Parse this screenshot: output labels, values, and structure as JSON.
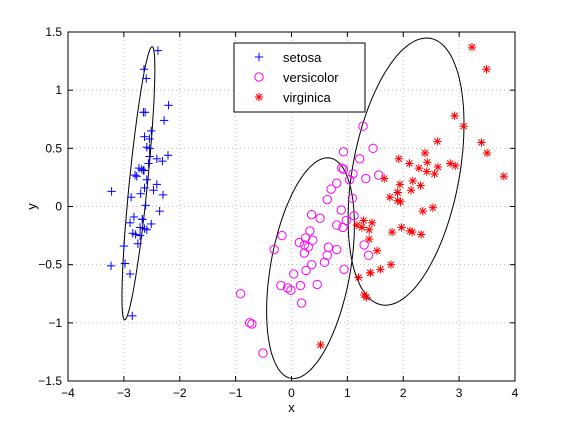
{
  "chart_data": {
    "type": "scatter",
    "xlabel": "x",
    "ylabel": "y",
    "xlim": [
      -4,
      4
    ],
    "ylim": [
      -1.5,
      1.5
    ],
    "xticks": [
      -4,
      -3,
      -2,
      -1,
      0,
      1,
      2,
      3,
      4
    ],
    "yticks": [
      -1.5,
      -1,
      -0.5,
      0,
      0.5,
      1,
      1.5
    ],
    "xtick_labels": [
      "−4",
      "−3",
      "−2",
      "−1",
      "0",
      "1",
      "2",
      "3",
      "4"
    ],
    "ytick_labels": [
      "−1.5",
      "−1",
      "−0.5",
      "0",
      "0.5",
      "1",
      "1.5"
    ],
    "grid": "dotted",
    "legend_position": "top-center",
    "series": [
      {
        "name": "setosa",
        "marker": "plus",
        "color": "#0000ff",
        "points": [
          [
            -2.68,
            0.32
          ],
          [
            -2.71,
            -0.18
          ],
          [
            -2.89,
            -0.14
          ],
          [
            -2.75,
            -0.32
          ],
          [
            -2.73,
            0.33
          ],
          [
            -2.28,
            0.74
          ],
          [
            -2.82,
            -0.09
          ],
          [
            -2.63,
            0.16
          ],
          [
            -2.89,
            -0.58
          ],
          [
            -2.67,
            -0.11
          ],
          [
            -2.51,
            0.65
          ],
          [
            -2.61,
            0.01
          ],
          [
            -2.79,
            -0.24
          ],
          [
            -3.23,
            -0.51
          ],
          [
            -2.64,
            1.18
          ],
          [
            -2.39,
            1.34
          ],
          [
            -2.62,
            0.81
          ],
          [
            -2.65,
            0.31
          ],
          [
            -2.2,
            0.87
          ],
          [
            -2.59,
            0.51
          ],
          [
            -2.31,
            0.39
          ],
          [
            -2.54,
            0.43
          ],
          [
            -3.22,
            0.13
          ],
          [
            -2.3,
            0.1
          ],
          [
            -2.36,
            -0.04
          ],
          [
            -2.51,
            -0.15
          ],
          [
            -2.47,
            0.14
          ],
          [
            -2.56,
            0.37
          ],
          [
            -2.64,
            0.31
          ],
          [
            -2.63,
            -0.19
          ],
          [
            -2.59,
            -0.2
          ],
          [
            -2.41,
            0.41
          ],
          [
            -2.65,
            0.81
          ],
          [
            -2.6,
            1.1
          ],
          [
            -2.67,
            -0.11
          ],
          [
            -2.87,
            0.08
          ],
          [
            -2.63,
            0.6
          ],
          [
            -2.8,
            0.27
          ],
          [
            -2.98,
            -0.49
          ],
          [
            -2.59,
            0.23
          ],
          [
            -2.77,
            0.26
          ],
          [
            -2.85,
            -0.94
          ],
          [
            -3.0,
            -0.34
          ],
          [
            -2.41,
            0.19
          ],
          [
            -2.21,
            0.44
          ],
          [
            -2.71,
            -0.25
          ],
          [
            -2.54,
            0.5
          ],
          [
            -2.84,
            -0.23
          ],
          [
            -2.54,
            0.58
          ],
          [
            -2.7,
            0.11
          ]
        ]
      },
      {
        "name": "versicolor",
        "marker": "circle",
        "color": "#ff00ff",
        "points": [
          [
            1.28,
            0.69
          ],
          [
            0.93,
            0.32
          ],
          [
            1.46,
            0.5
          ],
          [
            0.18,
            -0.83
          ],
          [
            1.09,
            0.07
          ],
          [
            0.64,
            -0.42
          ],
          [
            1.1,
            0.28
          ],
          [
            -0.75,
            -1.0
          ],
          [
            1.04,
            0.23
          ],
          [
            -0.01,
            -0.72
          ],
          [
            -0.51,
            -1.26
          ],
          [
            0.51,
            -0.1
          ],
          [
            0.26,
            -0.55
          ],
          [
            0.98,
            -0.12
          ],
          [
            -0.17,
            -0.25
          ],
          [
            0.93,
            0.47
          ],
          [
            0.66,
            -0.35
          ],
          [
            0.23,
            -0.33
          ],
          [
            0.94,
            -0.54
          ],
          [
            0.04,
            -0.58
          ],
          [
            1.12,
            -0.08
          ],
          [
            0.36,
            -0.07
          ],
          [
            1.3,
            -0.33
          ],
          [
            0.92,
            -0.18
          ],
          [
            0.71,
            0.15
          ],
          [
            0.9,
            0.33
          ],
          [
            1.33,
            0.24
          ],
          [
            1.56,
            0.27
          ],
          [
            0.81,
            -0.16
          ],
          [
            -0.31,
            -0.37
          ],
          [
            -0.07,
            -0.7
          ],
          [
            -0.19,
            -0.68
          ],
          [
            0.14,
            -0.31
          ],
          [
            1.38,
            -0.42
          ],
          [
            0.59,
            -0.48
          ],
          [
            0.81,
            0.2
          ],
          [
            1.22,
            0.41
          ],
          [
            0.81,
            -0.37
          ],
          [
            0.25,
            -0.27
          ],
          [
            0.16,
            -0.68
          ],
          [
            0.46,
            -0.67
          ],
          [
            0.89,
            -0.03
          ],
          [
            0.23,
            -0.4
          ],
          [
            -0.71,
            -1.01
          ],
          [
            0.36,
            -0.5
          ],
          [
            0.33,
            -0.21
          ],
          [
            0.38,
            -0.29
          ],
          [
            0.64,
            0.06
          ],
          [
            -0.91,
            -0.75
          ],
          [
            0.3,
            -0.35
          ]
        ]
      },
      {
        "name": "virginica",
        "marker": "asterisk",
        "color": "#ff0000",
        "points": [
          [
            2.53,
            -0.01
          ],
          [
            1.41,
            -0.57
          ],
          [
            2.62,
            0.34
          ],
          [
            1.97,
            -0.18
          ],
          [
            2.35,
            -0.04
          ],
          [
            3.4,
            0.55
          ],
          [
            0.52,
            -1.19
          ],
          [
            2.93,
            0.35
          ],
          [
            2.32,
            -0.24
          ],
          [
            2.92,
            0.78
          ],
          [
            1.66,
            0.24
          ],
          [
            1.8,
            -0.22
          ],
          [
            2.17,
            0.22
          ],
          [
            1.34,
            -0.78
          ],
          [
            1.59,
            -0.54
          ],
          [
            1.9,
            0.12
          ],
          [
            1.95,
            0.04
          ],
          [
            3.49,
            1.18
          ],
          [
            3.8,
            0.26
          ],
          [
            1.3,
            -0.76
          ],
          [
            2.43,
            0.38
          ],
          [
            1.2,
            -0.61
          ],
          [
            3.5,
            0.46
          ],
          [
            1.39,
            -0.2
          ],
          [
            2.28,
            0.33
          ],
          [
            2.61,
            0.56
          ],
          [
            1.26,
            -0.18
          ],
          [
            1.29,
            -0.12
          ],
          [
            2.12,
            -0.21
          ],
          [
            2.39,
            0.46
          ],
          [
            2.84,
            0.37
          ],
          [
            3.23,
            1.37
          ],
          [
            2.16,
            -0.22
          ],
          [
            1.44,
            -0.14
          ],
          [
            1.78,
            -0.5
          ],
          [
            3.08,
            0.69
          ],
          [
            2.14,
            0.14
          ],
          [
            1.9,
            0.05
          ],
          [
            1.17,
            -0.16
          ],
          [
            2.11,
            0.37
          ],
          [
            2.31,
            0.18
          ],
          [
            1.92,
            0.41
          ],
          [
            1.41,
            -0.57
          ],
          [
            2.56,
            0.28
          ],
          [
            2.42,
            0.3
          ],
          [
            1.94,
            0.19
          ],
          [
            1.53,
            -0.38
          ],
          [
            1.76,
            0.08
          ],
          [
            1.9,
            0.12
          ],
          [
            1.39,
            -0.28
          ]
        ]
      }
    ],
    "ellipses": [
      {
        "series": "setosa",
        "cx": -2.74,
        "cy": 0.2,
        "rx": 1.2,
        "ry": 0.16,
        "angle_deg": 78
      },
      {
        "series": "versicolor",
        "cx": 0.34,
        "cy": -0.53,
        "rx": 1.04,
        "ry": 0.66,
        "angle_deg": 58
      },
      {
        "series": "virginica",
        "cx": 2.05,
        "cy": 0.3,
        "rx": 1.28,
        "ry": 0.87,
        "angle_deg": 53
      }
    ]
  }
}
